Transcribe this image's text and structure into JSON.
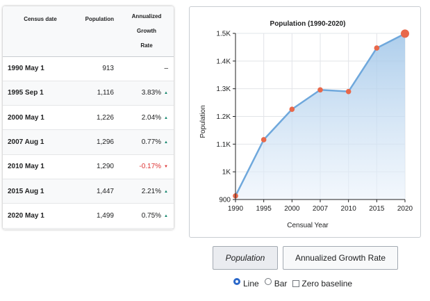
{
  "table": {
    "headers": {
      "date": "Census date",
      "population": "Population",
      "rate": [
        "Annualized",
        "Growth",
        "Rate"
      ]
    },
    "rows": [
      {
        "date": "1990 May 1",
        "population": "913",
        "rate": "–",
        "dir": "none"
      },
      {
        "date": "1995 Sep 1",
        "population": "1,116",
        "rate": "3.83%",
        "dir": "up"
      },
      {
        "date": "2000 May 1",
        "population": "1,226",
        "rate": "2.04%",
        "dir": "up"
      },
      {
        "date": "2007 Aug 1",
        "population": "1,296",
        "rate": "0.77%",
        "dir": "up"
      },
      {
        "date": "2010 May 1",
        "population": "1,290",
        "rate": "-0.17%",
        "dir": "down"
      },
      {
        "date": "2015 Aug 1",
        "population": "1,447",
        "rate": "2.21%",
        "dir": "up"
      },
      {
        "date": "2020 May 1",
        "population": "1,499",
        "rate": "0.75%",
        "dir": "up"
      }
    ],
    "arrow_up": "▲",
    "arrow_down": "▼"
  },
  "chart_data": {
    "type": "area",
    "title": "Population (1990-2020)",
    "xlabel": "Censual Year",
    "ylabel": "Population",
    "categories": [
      "1990",
      "1995",
      "2000",
      "2007",
      "2010",
      "2015",
      "2020"
    ],
    "values": [
      913,
      1116,
      1226,
      1296,
      1290,
      1447,
      1499
    ],
    "ylim": [
      900,
      1500
    ],
    "yticks": [
      900,
      1000,
      1100,
      1200,
      1300,
      1400,
      1500
    ],
    "ytick_labels": [
      "900",
      "1K",
      "1.1K",
      "1.2K",
      "1.3K",
      "1.4K",
      "1.5K"
    ],
    "grid": true,
    "colors": {
      "line": "#6fa8dc",
      "point": "#e8684a",
      "fill_top": "#9fc5e8",
      "fill_bottom": "#eaf2fb"
    }
  },
  "controls": {
    "population_button": "Population",
    "growth_button": "Annualized Growth Rate",
    "line_label": "Line",
    "bar_label": "Bar",
    "zero_label": "Zero baseline",
    "chart_type_selected": "line",
    "zero_baseline_checked": false
  }
}
